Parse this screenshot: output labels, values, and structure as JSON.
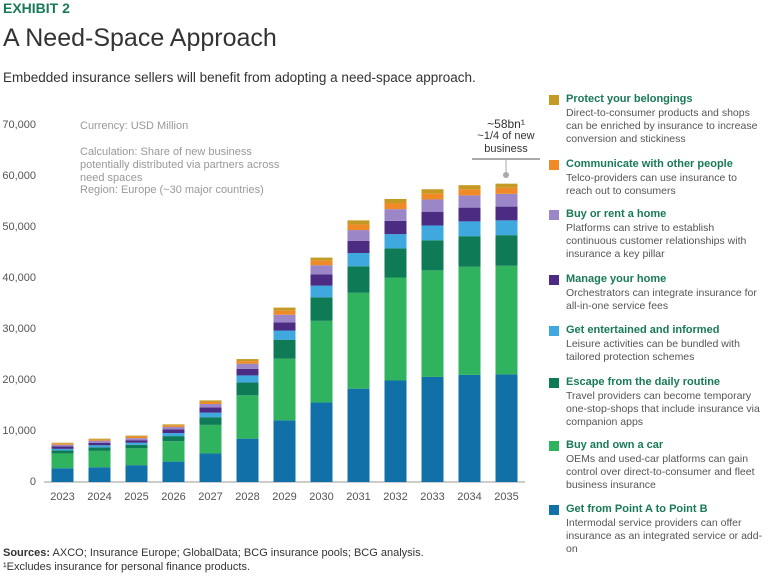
{
  "exhibit": "EXHIBIT 2",
  "title": "A Need-Space Approach",
  "subtitle": "Embedded insurance sellers will benefit from adopting a need-space approach.",
  "chart_data": {
    "type": "stacked_bar",
    "notes": [
      "Currency: USD Million",
      "Calculation: Share of new business potentially distributed via partners across need spaces",
      "Region: Europe (~30 major countries)"
    ],
    "annotation": {
      "value": "~58bn¹",
      "text": "~1/4 of new business"
    },
    "categories": [
      "2023",
      "2024",
      "2025",
      "2026",
      "2027",
      "2028",
      "2029",
      "2030",
      "2031",
      "2032",
      "2033",
      "2034",
      "2035"
    ],
    "ylim": [
      0,
      70000
    ],
    "yticks": [
      0,
      {
        "value": 10000,
        "label": "10,000"
      },
      {
        "value": 20000,
        "label": "20,000"
      },
      {
        "value": 30000,
        "label": "30,000"
      },
      {
        "value": 40000,
        "label": "40,000"
      },
      {
        "value": 50000,
        "label": "50,000"
      },
      {
        "value": 60000,
        "label": "60,000"
      },
      {
        "value": 70000,
        "label": "70,000"
      }
    ],
    "grid": false,
    "legend": "right",
    "series": [
      {
        "name": "Get from Point A to Point B",
        "description": "Intermodal service providers can offer insurance as an integrated service or add-on",
        "color": "#1170a8",
        "values": [
          2700,
          2900,
          3300,
          4000,
          5600,
          8500,
          12100,
          15600,
          18300,
          19900,
          20600,
          21000,
          21100
        ]
      },
      {
        "name": "Buy and own a car",
        "description": "OEMs and used-car platforms can gain control over direct-to-consumer and fleet business insurance",
        "color": "#2fb35f",
        "values": [
          2900,
          3200,
          3300,
          4000,
          5600,
          8500,
          12100,
          16000,
          18800,
          20200,
          20900,
          21200,
          21300
        ]
      },
      {
        "name": "Escape from the daily routine",
        "description": "Travel providers can become temporary one-stop-shops that include insurance via companion apps",
        "color": "#0f7a56",
        "values": [
          600,
          700,
          700,
          1000,
          1500,
          2500,
          3700,
          4600,
          5200,
          5700,
          5900,
          6000,
          6000
        ]
      },
      {
        "name": "Get entertained and informed",
        "description": "Leisure activities can be bundled with tailored protection schemes",
        "color": "#3ea8df",
        "values": [
          300,
          400,
          400,
          600,
          900,
          1400,
          1800,
          2300,
          2600,
          2800,
          2900,
          2900,
          2900
        ]
      },
      {
        "name": "Manage your home",
        "description": "Orchestrators can integrate insurance for all-in-one service fees",
        "color": "#4c2b83",
        "values": [
          500,
          500,
          500,
          700,
          1000,
          1300,
          1600,
          2200,
          2400,
          2600,
          2700,
          2700,
          2700
        ]
      },
      {
        "name": "Buy or rent a home",
        "description": "Platforms can strive to establish continuous customer relationships with insurance a key pillar",
        "color": "#9b86c8",
        "values": [
          300,
          400,
          400,
          500,
          700,
          1000,
          1500,
          1800,
          2100,
          2300,
          2400,
          2400,
          2500
        ]
      },
      {
        "name": "Communicate with other people",
        "description": "Telco-providers can use insurance to reach out to consumers",
        "color": "#ef8a26",
        "values": [
          200,
          200,
          300,
          300,
          400,
          500,
          800,
          900,
          1100,
          1200,
          1200,
          1200,
          1200
        ]
      },
      {
        "name": "Protect your belongings",
        "description": "Direct-to-consumer products and shops can be enriched by insurance to increase conversion and stickiness",
        "color": "#c49a24",
        "values": [
          200,
          200,
          200,
          200,
          300,
          400,
          600,
          600,
          800,
          800,
          800,
          800,
          800
        ]
      }
    ]
  },
  "sources": {
    "label": "Sources:",
    "text": "AXCO; Insurance Europe; GlobalData; BCG insurance pools; BCG analysis."
  },
  "footnote": "¹Excludes insurance for personal finance products."
}
